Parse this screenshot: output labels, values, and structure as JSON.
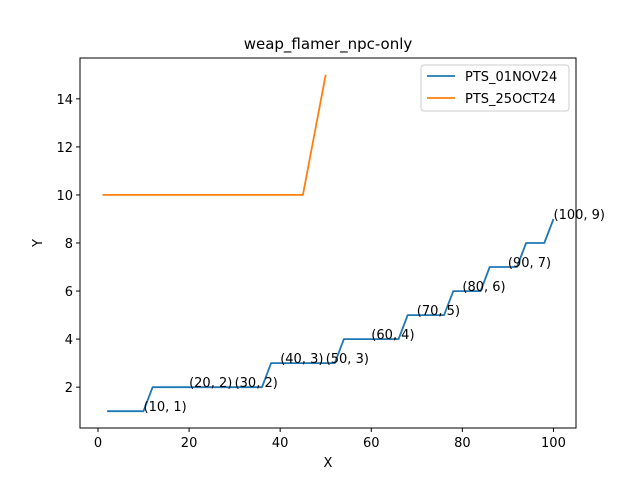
{
  "chart_data": {
    "type": "line",
    "title": "weap_flamer_npc-only",
    "xlabel": "X",
    "ylabel": "Y",
    "xlim": [
      -3.95,
      104.95
    ],
    "ylim": [
      0.3,
      15.7
    ],
    "xticks": [
      0,
      20,
      40,
      60,
      80,
      100
    ],
    "yticks": [
      2,
      4,
      6,
      8,
      10,
      12,
      14
    ],
    "grid": false,
    "legend_position": "top-right",
    "series": [
      {
        "name": "PTS_01NOV24",
        "color": "#1f77b4",
        "x": [
          2,
          10,
          12,
          36,
          38,
          52,
          54,
          66,
          68,
          74,
          76,
          78,
          80,
          84,
          86,
          92,
          94,
          98,
          100
        ],
        "y": [
          1,
          1,
          2,
          2,
          3,
          3,
          4,
          4,
          5,
          5,
          5,
          6,
          6,
          6,
          7,
          7,
          8,
          8,
          9
        ]
      },
      {
        "name": "PTS_25OCT24",
        "color": "#ff7f0e",
        "x": [
          1,
          45,
          50
        ],
        "y": [
          10,
          10,
          15
        ]
      }
    ],
    "annotations": [
      {
        "text": "(10, 1)",
        "x": 10,
        "y": 1
      },
      {
        "text": "(20, 2)",
        "x": 20,
        "y": 2
      },
      {
        "text": "(30, 2)",
        "x": 30,
        "y": 2
      },
      {
        "text": "(40, 3)",
        "x": 40,
        "y": 3
      },
      {
        "text": "(50, 3)",
        "x": 50,
        "y": 3
      },
      {
        "text": "(60, 4)",
        "x": 60,
        "y": 4
      },
      {
        "text": "(70, 5)",
        "x": 70,
        "y": 5
      },
      {
        "text": "(80, 6)",
        "x": 80,
        "y": 6
      },
      {
        "text": "(90, 7)",
        "x": 90,
        "y": 7
      },
      {
        "text": "(100, 9)",
        "x": 100,
        "y": 9
      }
    ]
  }
}
